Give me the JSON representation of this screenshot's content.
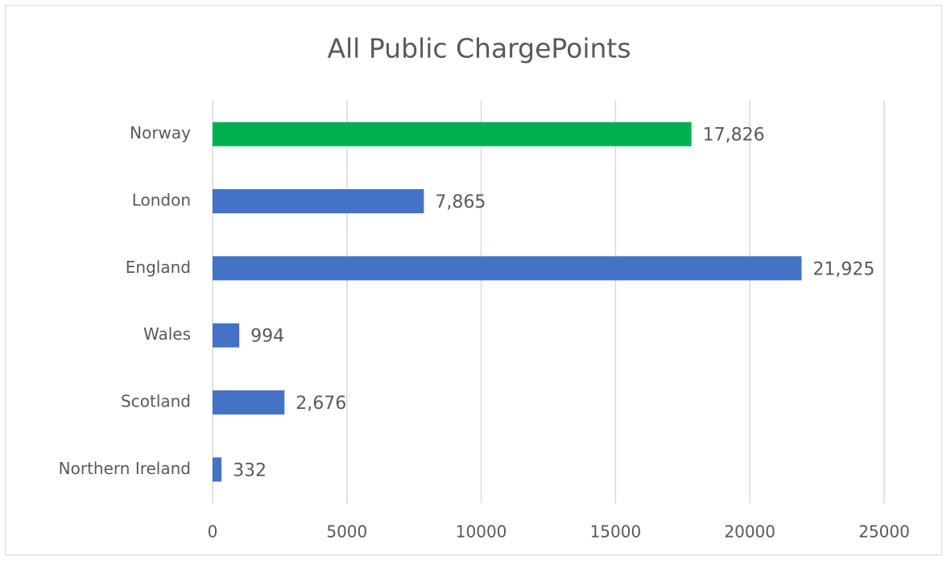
{
  "chart_data": {
    "type": "bar",
    "orientation": "horizontal",
    "title": "All Public ChargePoints",
    "categories": [
      "Norway",
      "London",
      "England",
      "Wales",
      "Scotland",
      "Northern Ireland"
    ],
    "values": [
      17826,
      7865,
      21925,
      994,
      2676,
      332
    ],
    "value_labels": [
      "17,826",
      "7,865",
      "21,925",
      "994",
      "2,676",
      "332"
    ],
    "colors": [
      "#00b050",
      "#4472c4",
      "#4472c4",
      "#4472c4",
      "#4472c4",
      "#4472c4"
    ],
    "xlim": [
      0,
      25000
    ],
    "xticks": [
      0,
      5000,
      10000,
      15000,
      20000,
      25000
    ],
    "grid": true
  }
}
